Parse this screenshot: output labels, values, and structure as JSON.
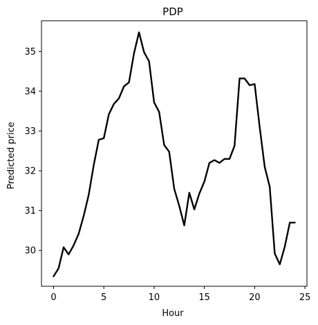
{
  "chart_data": {
    "type": "line",
    "title": "PDP",
    "xlabel": "Hour",
    "ylabel": "Predicted price",
    "xlim": [
      -1.2,
      25.2
    ],
    "ylim": [
      29.1,
      35.77
    ],
    "xticks": [
      0,
      5,
      10,
      15,
      20,
      25
    ],
    "yticks": [
      30,
      31,
      32,
      33,
      34,
      35
    ],
    "grid": false,
    "legend": "none",
    "series": [
      {
        "color": "#000000",
        "x": [
          0,
          0.5,
          1,
          1.5,
          2,
          2.5,
          3,
          3.5,
          4,
          4.5,
          5,
          5.5,
          6,
          6.5,
          7,
          7.5,
          8,
          8.5,
          9,
          9.5,
          10,
          10.5,
          11,
          11.5,
          12,
          12.5,
          13,
          13.5,
          14,
          14.5,
          15,
          15.5,
          16,
          16.5,
          17,
          17.5,
          18,
          18.5,
          19,
          19.5,
          20,
          20.5,
          21,
          21.5,
          22,
          22.5,
          23,
          23.5,
          24
        ],
        "y": [
          29.35,
          29.55,
          30.08,
          29.9,
          30.13,
          30.42,
          30.87,
          31.4,
          32.15,
          32.78,
          32.82,
          33.42,
          33.68,
          33.82,
          34.12,
          34.22,
          34.95,
          35.48,
          34.98,
          34.75,
          33.72,
          33.48,
          32.65,
          32.48,
          31.55,
          31.12,
          30.63,
          31.45,
          31.03,
          31.43,
          31.73,
          32.2,
          32.27,
          32.2,
          32.3,
          32.3,
          32.63,
          34.32,
          34.32,
          34.15,
          34.18,
          33.1,
          32.1,
          31.6,
          29.92,
          29.65,
          30.1,
          30.7,
          30.7
        ]
      }
    ]
  }
}
